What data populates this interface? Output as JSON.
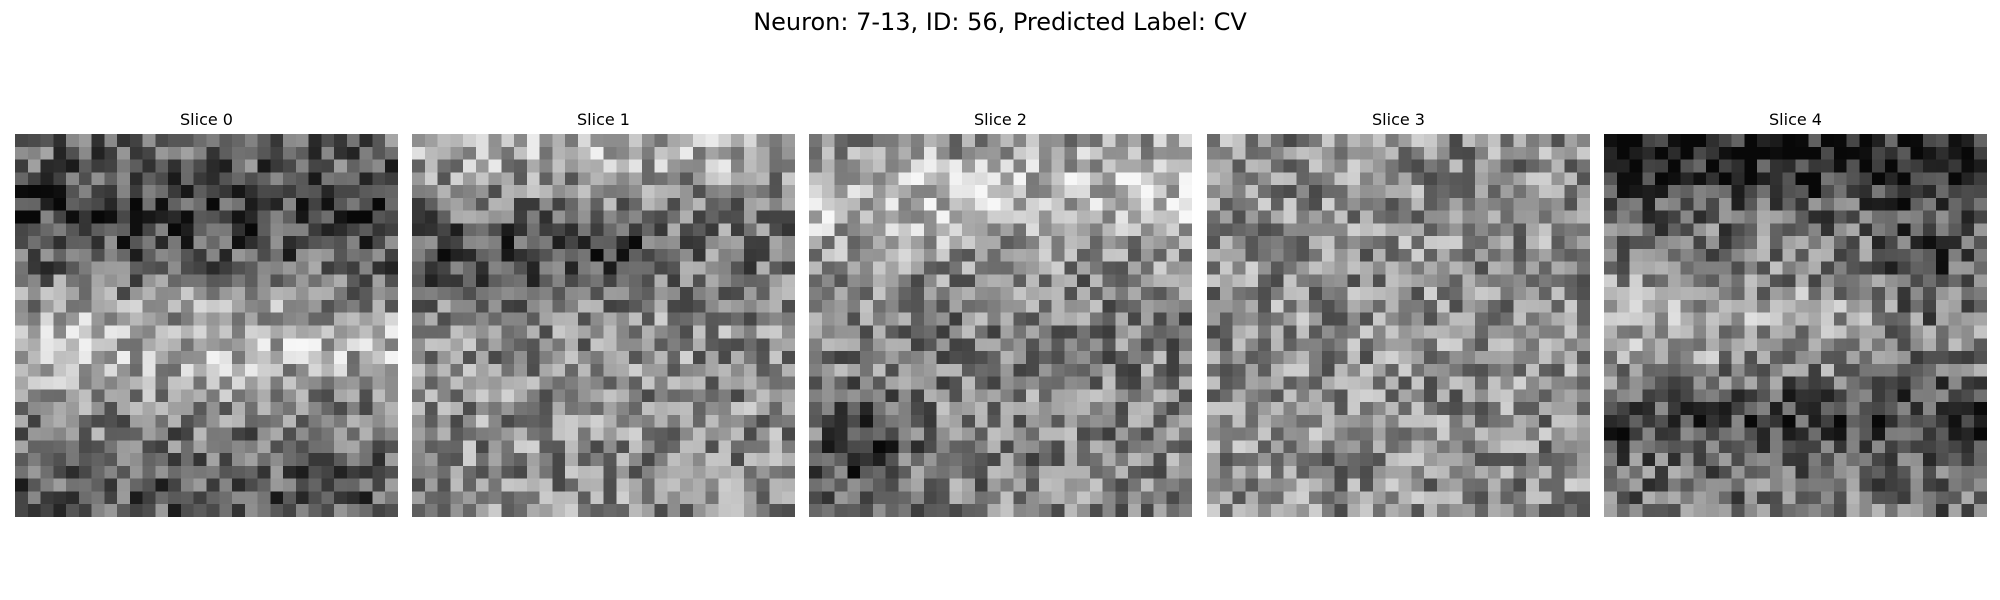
{
  "figure": {
    "title": "Neuron: 7-13, ID: 56, Predicted Label: CV"
  },
  "slices": [
    {
      "label": "Slice 0",
      "seed": 11,
      "pattern": "dark-top-bright-middle"
    },
    {
      "label": "Slice 1",
      "seed": 23,
      "pattern": "bright-top-dark-band"
    },
    {
      "label": "Slice 2",
      "seed": 37,
      "pattern": "bright-top-dark-bottom-left"
    },
    {
      "label": "Slice 3",
      "seed": 41,
      "pattern": "uniform-noise"
    },
    {
      "label": "Slice 4",
      "seed": 53,
      "pattern": "dark-top-bright-middle-dark-bottom"
    }
  ],
  "colormap": "gray",
  "grid_size": 30
}
